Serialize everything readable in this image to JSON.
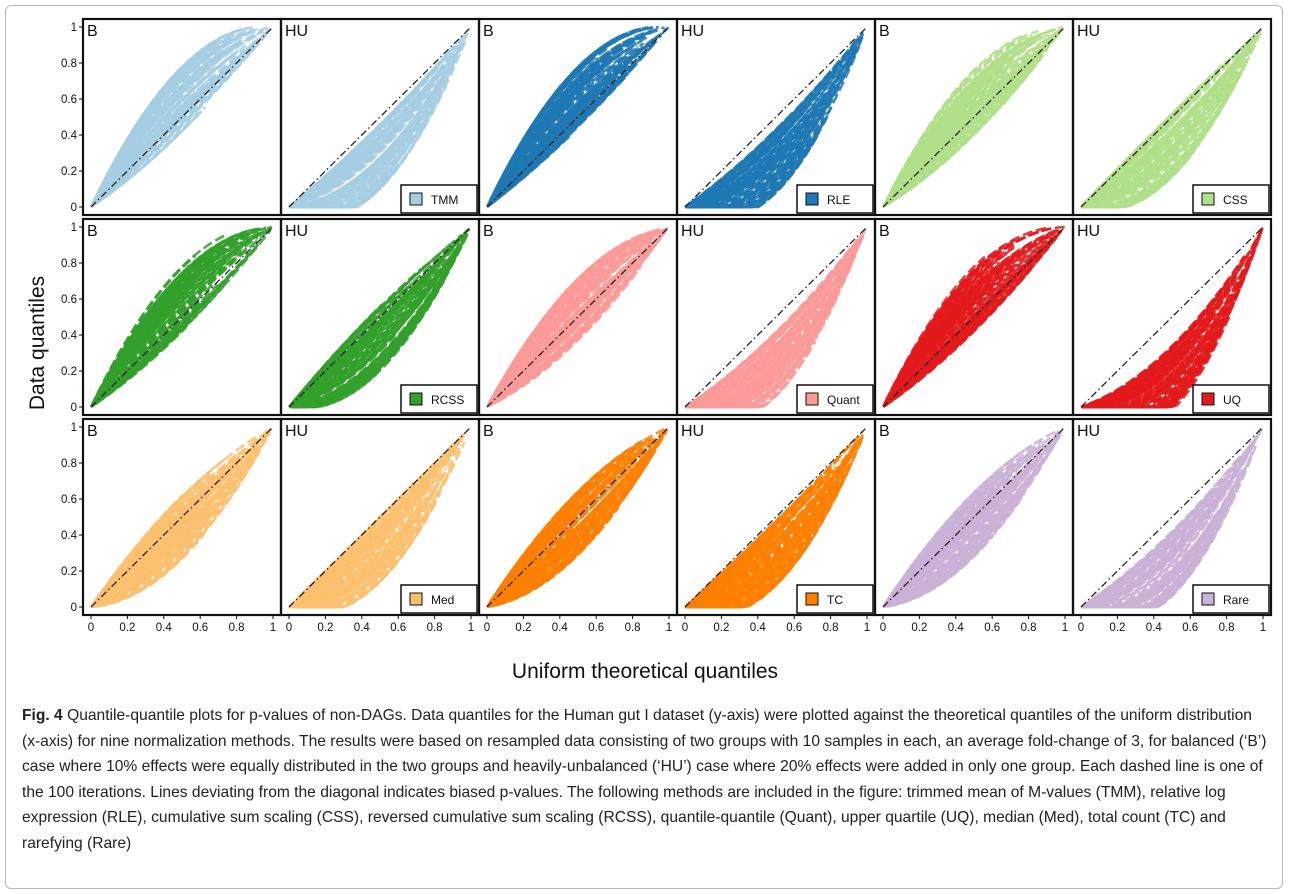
{
  "chart_data": {
    "type": "line",
    "xlabel": "Uniform theoretical quantiles",
    "ylabel": "Data quantiles",
    "xlim": [
      0,
      1
    ],
    "ylim": [
      0,
      1
    ],
    "x_ticks": [
      "0",
      "0.2",
      "0.4",
      "0.6",
      "0.8",
      "1"
    ],
    "y_ticks": [
      "0",
      "0.2",
      "0.4",
      "0.6",
      "0.8",
      "1"
    ],
    "reference_line": "diagonal y = x (dash-dot)",
    "iterations": 100,
    "panel_labels": [
      "B",
      "HU"
    ],
    "methods": [
      {
        "name": "TMM",
        "color": "#a6cee3",
        "B_curvature": 0.1,
        "HU_curvature": -0.22
      },
      {
        "name": "RLE",
        "color": "#1f78b4",
        "B_curvature": 0.12,
        "HU_curvature": -0.24
      },
      {
        "name": "CSS",
        "color": "#b2df8a",
        "B_curvature": 0.08,
        "HU_curvature": -0.16
      },
      {
        "name": "RCSS",
        "color": "#33a02c",
        "B_curvature": 0.1,
        "HU_curvature": -0.12
      },
      {
        "name": "Quant",
        "color": "#fb9a99",
        "B_curvature": 0.04,
        "HU_curvature": -0.26
      },
      {
        "name": "UQ",
        "color": "#e31a1c",
        "B_curvature": 0.1,
        "HU_curvature": -0.34
      },
      {
        "name": "Med",
        "color": "#fdbf6f",
        "B_curvature": -0.06,
        "HU_curvature": -0.18
      },
      {
        "name": "TC",
        "color": "#ff7f00",
        "B_curvature": -0.03,
        "HU_curvature": -0.2
      },
      {
        "name": "Rare",
        "color": "#cab2d6",
        "B_curvature": -0.04,
        "HU_curvature": -0.26
      }
    ]
  },
  "caption": {
    "fig_label": "Fig. 4",
    "text": "Quantile-quantile plots for p-values of non-DAGs. Data quantiles for the Human gut I dataset (y-axis) were plotted against the theoretical quantiles of the uniform distribution (x-axis) for nine normalization methods. The results were based on resampled data consisting of two groups with 10 samples in each, an average fold-change of 3, for balanced (‘B’) case where 10% effects were equally distributed in the two groups and heavily-unbalanced (‘HU’) case where 20% effects were added in only one group. Each dashed line is one of the 100 iterations. Lines deviating from the diagonal indicates biased p-values. The following methods are included in the figure: trimmed mean of M-values (TMM), relative log expression (RLE), cumulative sum scaling (CSS), reversed cumulative sum scaling (RCSS), quantile-quantile (Quant), upper quartile (UQ), median (Med), total count (TC) and rarefying (Rare)"
  }
}
